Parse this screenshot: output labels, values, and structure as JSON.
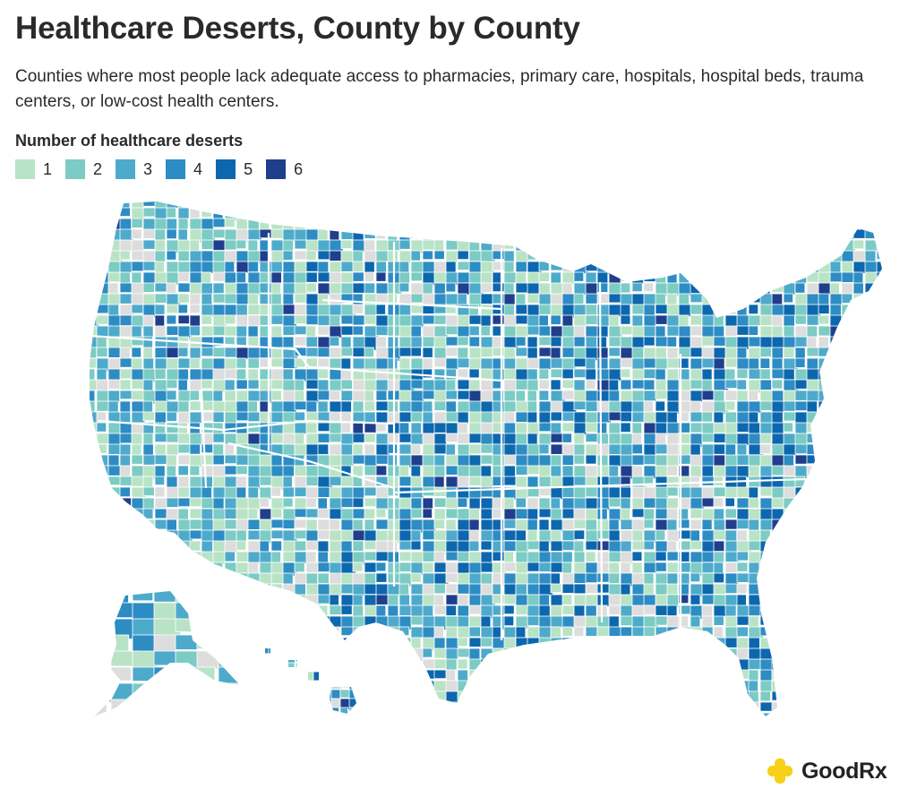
{
  "title": "Healthcare Deserts, County by County",
  "subtitle": "Counties where most people lack adequate access to pharmacies, primary care, hospitals, hospital beds, trauma centers, or low-cost health centers.",
  "legend": {
    "title": "Number of healthcare deserts",
    "items": [
      {
        "label": "1",
        "color": "#b9e3c6"
      },
      {
        "label": "2",
        "color": "#7ccbc4"
      },
      {
        "label": "3",
        "color": "#4eaacb"
      },
      {
        "label": "4",
        "color": "#2d8cc3"
      },
      {
        "label": "5",
        "color": "#0c67ae"
      },
      {
        "label": "6",
        "color": "#1f3f8c"
      }
    ],
    "no_data_color": "#dddddd"
  },
  "brand": {
    "name": "GoodRx",
    "color": "#f7d117"
  }
}
